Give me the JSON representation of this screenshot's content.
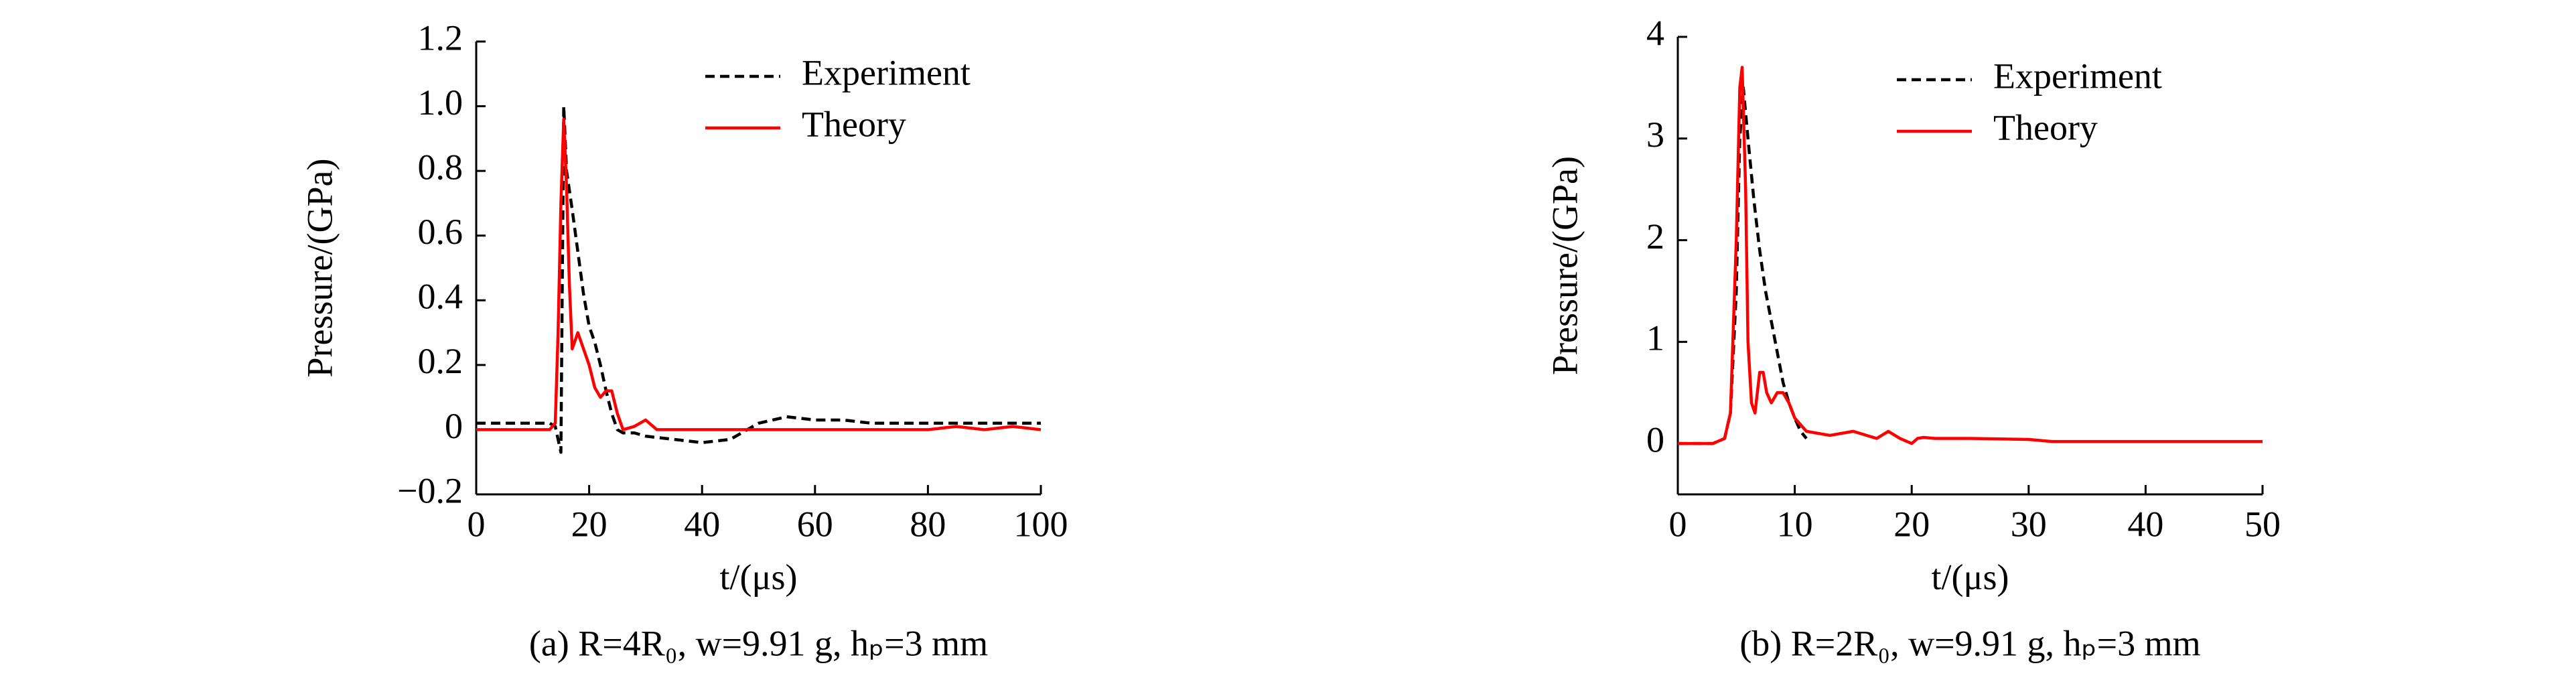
{
  "chart_data": [
    {
      "type": "line",
      "xlabel": "t/(μs)",
      "ylabel": "Pressure/(GPa)",
      "caption": "(a) R=4R₀, w=9.91 g, hₚ=3 mm",
      "xlim": [
        0,
        100
      ],
      "xticks": [
        0,
        20,
        40,
        60,
        80,
        100
      ],
      "ylim": [
        -0.2,
        1.2
      ],
      "yticks": [
        {
          "value": -0.2,
          "label": "−0.2"
        },
        0,
        0.2,
        0.4,
        0.6,
        0.8,
        {
          "value": 1.0,
          "label": "1.0"
        },
        1.2
      ],
      "legend": "upper right",
      "series": [
        {
          "name": "Experiment",
          "color": "#000000",
          "dash": true,
          "x": [
            0,
            5,
            10,
            13,
            14,
            15,
            15.5,
            16,
            17,
            18,
            19,
            20,
            21,
            22,
            23,
            24,
            25,
            26,
            28,
            30,
            35,
            40,
            45,
            50,
            55,
            60,
            65,
            70,
            75,
            80,
            85,
            90,
            95,
            100
          ],
          "values": [
            0.02,
            0.02,
            0.02,
            0.02,
            0.01,
            -0.07,
            1.0,
            0.8,
            0.68,
            0.55,
            0.42,
            0.32,
            0.27,
            0.2,
            0.12,
            0.05,
            0.0,
            -0.01,
            -0.01,
            -0.02,
            -0.03,
            -0.04,
            -0.03,
            0.02,
            0.04,
            0.03,
            0.03,
            0.02,
            0.02,
            0.02,
            0.02,
            0.02,
            0.02,
            0.02
          ]
        },
        {
          "name": "Theory",
          "color": "#ff0000",
          "dash": false,
          "x": [
            0,
            10,
            13,
            14,
            14.5,
            15,
            15.5,
            16,
            16.5,
            17,
            18,
            19,
            20,
            21,
            22,
            23,
            24,
            25,
            26,
            28,
            30,
            32,
            35,
            40,
            50,
            60,
            70,
            80,
            85,
            90,
            95,
            100
          ],
          "values": [
            0,
            0,
            0,
            0.02,
            0.3,
            0.7,
            0.96,
            0.75,
            0.45,
            0.25,
            0.3,
            0.25,
            0.2,
            0.13,
            0.1,
            0.12,
            0.12,
            0.05,
            0.0,
            0.01,
            0.03,
            0.0,
            0.0,
            0,
            0,
            0,
            0,
            0,
            0.01,
            0,
            0.01,
            0
          ]
        }
      ]
    },
    {
      "type": "line",
      "xlabel": "t/(μs)",
      "ylabel": "Pressure/(GPa)",
      "caption": "(b) R=2R₀, w=9.91 g, hₚ=3 mm",
      "xlim": [
        0,
        50
      ],
      "xticks": [
        0,
        10,
        20,
        30,
        40,
        50
      ],
      "ylim": [
        -0.5,
        4
      ],
      "yticks": [
        0,
        1,
        2,
        3,
        4
      ],
      "legend": "upper right",
      "series": [
        {
          "name": "Experiment",
          "color": "#000000",
          "dash": true,
          "x": [
            0,
            3,
            4,
            4.5,
            5,
            5.3,
            5.6,
            6,
            6.5,
            7,
            7.5,
            8,
            8.5,
            9,
            9.5,
            10,
            10.5,
            11
          ],
          "values": [
            0,
            0,
            0.05,
            0.3,
            1.5,
            3.0,
            3.5,
            3.0,
            2.4,
            1.9,
            1.5,
            1.2,
            0.9,
            0.6,
            0.4,
            0.25,
            0.12,
            0.05
          ]
        },
        {
          "name": "Theory",
          "color": "#ff0000",
          "dash": false,
          "x": [
            0,
            3,
            4,
            4.5,
            5,
            5.3,
            5.5,
            5.8,
            6,
            6.3,
            6.6,
            7,
            7.3,
            7.6,
            8,
            8.5,
            9,
            9.5,
            10,
            11,
            12,
            13,
            15,
            17,
            18,
            19,
            20,
            20.5,
            21,
            22,
            25,
            30,
            32,
            40,
            50
          ],
          "values": [
            0,
            0,
            0.05,
            0.3,
            2.0,
            3.5,
            3.7,
            2.5,
            1.0,
            0.4,
            0.3,
            0.7,
            0.7,
            0.5,
            0.4,
            0.5,
            0.5,
            0.4,
            0.25,
            0.12,
            0.1,
            0.08,
            0.12,
            0.05,
            0.12,
            0.05,
            0.0,
            0.05,
            0.06,
            0.05,
            0.05,
            0.04,
            0.02,
            0.02,
            0.02
          ]
        }
      ]
    }
  ]
}
